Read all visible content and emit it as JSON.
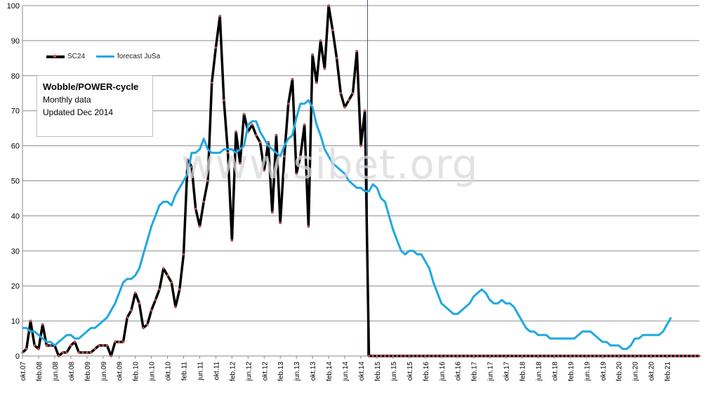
{
  "chart_data": {
    "type": "line",
    "title": "",
    "ylim": [
      0,
      100
    ],
    "y_ticks": [
      0,
      10,
      20,
      30,
      40,
      50,
      60,
      70,
      80,
      90,
      100
    ],
    "x_tick_labels": [
      "okt.07",
      "feb.08",
      "jun.08",
      "okt.08",
      "feb.09",
      "jun.09",
      "okt.09",
      "feb.10",
      "jun.10",
      "okt.10",
      "feb.11",
      "jun.11",
      "okt.11",
      "feb.12",
      "jun.12",
      "okt.12",
      "feb.13",
      "jun.13",
      "okt.13",
      "feb.14",
      "jun.14",
      "okt.14",
      "feb.15",
      "jun.15",
      "okt.15",
      "feb.16",
      "jun.16",
      "okt.16",
      "feb.17",
      "jun.17",
      "okt.17",
      "feb.18",
      "jun.18",
      "okt.18",
      "feb.19",
      "jun.19",
      "okt.19",
      "feb.20",
      "jun.20",
      "okt.20",
      "feb.21"
    ],
    "grid": "horizontal",
    "legend_position": "top-left",
    "vertical_marker_month": "dec.14",
    "series": [
      {
        "name": "SC24",
        "color": "#000000",
        "marker_color": "#c0504d",
        "values": [
          1,
          2,
          10,
          3,
          2,
          9,
          3,
          3,
          3,
          0,
          1,
          1,
          3,
          4,
          1,
          1,
          1,
          1,
          2,
          3,
          3,
          3,
          0,
          4,
          4,
          4,
          11,
          13,
          18,
          15,
          8,
          9,
          13,
          16,
          19,
          25,
          23,
          21,
          14,
          19,
          29,
          56,
          54,
          42,
          37,
          44,
          50,
          78,
          88,
          97,
          73,
          58,
          33,
          64,
          55,
          69,
          64,
          66,
          63,
          61,
          53,
          61,
          41,
          63,
          38,
          57,
          72,
          79,
          52,
          57,
          66,
          37,
          86,
          78,
          90,
          82,
          101,
          93,
          85,
          75,
          71,
          73,
          75,
          87,
          60,
          70,
          0,
          0,
          0,
          0,
          0,
          0,
          0,
          0,
          0,
          0,
          0,
          0,
          0,
          0,
          0,
          0,
          0,
          0,
          0,
          0,
          0,
          0,
          0,
          0,
          0,
          0,
          0,
          0,
          0,
          0,
          0,
          0,
          0,
          0,
          0,
          0,
          0,
          0,
          0,
          0,
          0,
          0,
          0,
          0,
          0,
          0,
          0,
          0,
          0,
          0,
          0,
          0,
          0,
          0,
          0,
          0,
          0,
          0,
          0,
          0,
          0,
          0,
          0,
          0,
          0,
          0,
          0,
          0,
          0,
          0,
          0,
          0,
          0,
          0,
          0,
          0,
          0,
          0,
          0,
          0,
          0,
          0,
          0
        ]
      },
      {
        "name": "forecast JuSa",
        "color": "#1fa8e0",
        "values": [
          8,
          8,
          7,
          7,
          6,
          5,
          4,
          4,
          3,
          4,
          5,
          6,
          6,
          5,
          5,
          6,
          7,
          8,
          8,
          9,
          10,
          11,
          13,
          15,
          18,
          21,
          22,
          22,
          23,
          25,
          29,
          33,
          37,
          40,
          43,
          44,
          44,
          43,
          46,
          48,
          50,
          52,
          58,
          58,
          59,
          62,
          59,
          58,
          58,
          58,
          59,
          59,
          59,
          58,
          59,
          60,
          66,
          67,
          67,
          64,
          62,
          60,
          59,
          58,
          57,
          60,
          62,
          63,
          68,
          72,
          72,
          73,
          71,
          66,
          63,
          59,
          57,
          55,
          54,
          53,
          52,
          50,
          49,
          48,
          48,
          47,
          47,
          49,
          48,
          45,
          44,
          40,
          36,
          33,
          30,
          29,
          30,
          30,
          29,
          29,
          27,
          25,
          21,
          18,
          15,
          14,
          13,
          12,
          12,
          13,
          14,
          15,
          17,
          18,
          19,
          18,
          16,
          15,
          15,
          16,
          15,
          15,
          14,
          12,
          10,
          8,
          7,
          7,
          6,
          6,
          6,
          5,
          5,
          5,
          5,
          5,
          5,
          5,
          6,
          7,
          7,
          7,
          6,
          5,
          4,
          4,
          3,
          3,
          3,
          2,
          2,
          3,
          5,
          5,
          6,
          6,
          6,
          6,
          6,
          7,
          9,
          11
        ]
      }
    ]
  },
  "infobox": {
    "line1": "Wobble/POWER-cycle",
    "line2": "Monthly data",
    "line3": "Updated Dec 2014"
  },
  "watermark": "www.sibet.org"
}
